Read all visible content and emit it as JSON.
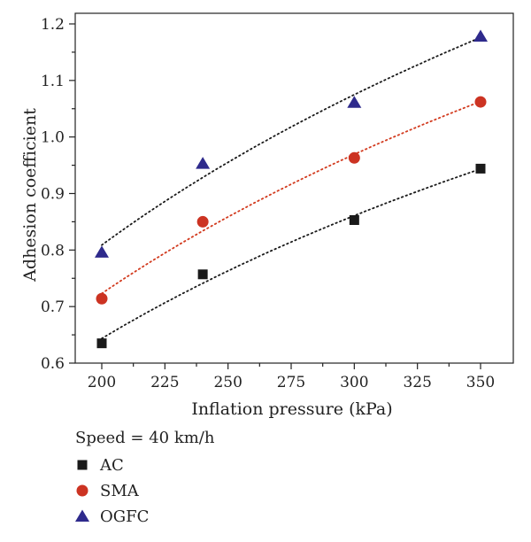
{
  "chart_data": {
    "type": "scatter",
    "xlabel": "Inflation pressure (kPa)",
    "ylabel": "Adhesion coefficient",
    "xlim": [
      200,
      350
    ],
    "ylim": [
      0.6,
      1.2
    ],
    "x_ticks": [
      200,
      225,
      250,
      275,
      300,
      325,
      350
    ],
    "y_ticks": [
      0.6,
      0.7,
      0.8,
      0.9,
      1.0,
      1.1,
      1.2
    ],
    "x_tick_labels": [
      "200",
      "225",
      "250",
      "275",
      "300",
      "325",
      "350"
    ],
    "y_tick_labels": [
      "0.6",
      "0.7",
      "0.8",
      "0.9",
      "1.0",
      "1.1",
      "1.2"
    ],
    "grid": false,
    "legend_title": "Speed = 40 km/h",
    "legend_placement": "bottom-left",
    "series": [
      {
        "name": "AC",
        "marker": "square",
        "color": "#1a1a1a",
        "trend_color": "#1a1a1a",
        "x": [
          200,
          240,
          300,
          350
        ],
        "y": [
          0.635,
          0.757,
          0.853,
          0.944
        ]
      },
      {
        "name": "SMA",
        "marker": "circle",
        "color": "#cc3322",
        "trend_color": "#d23a1e",
        "x": [
          200,
          240,
          300,
          350
        ],
        "y": [
          0.714,
          0.85,
          0.963,
          1.062
        ]
      },
      {
        "name": "OGFC",
        "marker": "triangle",
        "color": "#2e2a8c",
        "trend_color": "#1a1a1a",
        "x": [
          200,
          240,
          300,
          350
        ],
        "y": [
          0.796,
          0.953,
          1.061,
          1.178
        ]
      }
    ]
  }
}
